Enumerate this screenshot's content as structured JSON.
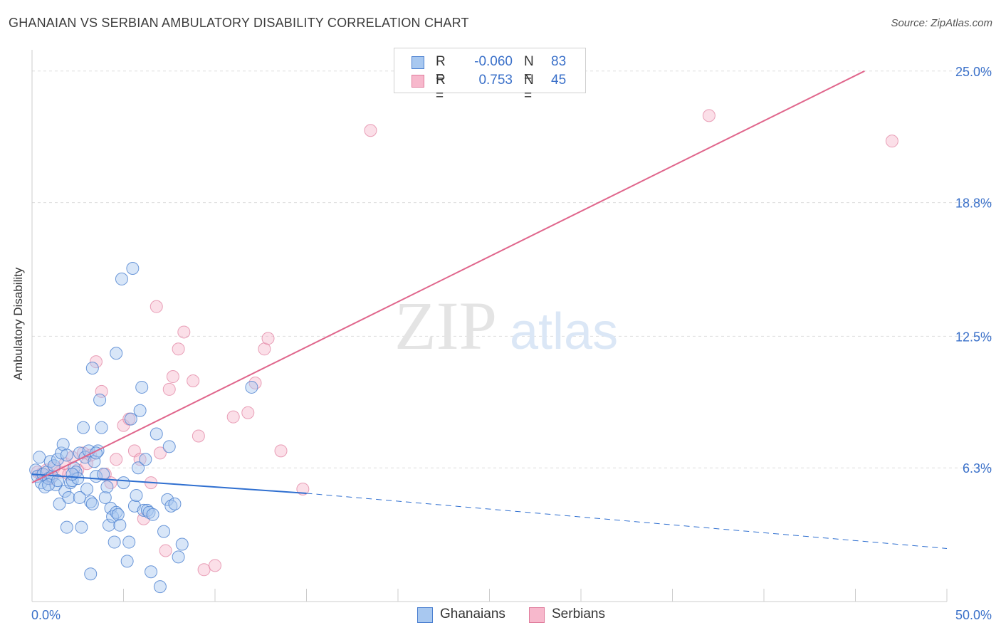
{
  "title": "GHANAIAN VS SERBIAN AMBULATORY DISABILITY CORRELATION CHART",
  "source": "Source: ZipAtlas.com",
  "legend_stats": [
    {
      "series": "Ghanaians",
      "r_label": "R =",
      "r_value": "-0.060",
      "n_label": "N =",
      "n_value": "83"
    },
    {
      "series": "Serbians",
      "r_label": "R =",
      "r_value": "0.753",
      "n_label": "N =",
      "n_value": "45"
    }
  ],
  "watermark": {
    "zip": "ZIP",
    "atlas": "atlas"
  },
  "colors": {
    "ghanaian_fill": "#a8c8f0",
    "ghanaian_stroke": "#4a7fd0",
    "ghanaian_line": "#2f6fd0",
    "serbian_fill": "#f7b8cc",
    "serbian_stroke": "#e07c9c",
    "serbian_line": "#e0668c",
    "axis_label": "#3a70c9",
    "grid": "#dddddd"
  },
  "chart_data": {
    "type": "scatter",
    "title": "GHANAIAN VS SERBIAN AMBULATORY DISABILITY CORRELATION CHART",
    "xlabel": "",
    "ylabel": "Ambulatory Disability",
    "xlim": [
      0,
      50
    ],
    "ylim": [
      0,
      26
    ],
    "x_tick_labels": [
      "0.0%",
      "50.0%"
    ],
    "y_ticks": [
      6.3,
      12.5,
      18.8,
      25.0
    ],
    "y_tick_labels": [
      "6.3%",
      "12.5%",
      "18.8%",
      "25.0%"
    ],
    "legend": [
      "Ghanaians",
      "Serbians"
    ],
    "series": [
      {
        "name": "Ghanaians",
        "r": -0.06,
        "n": 83,
        "trend": {
          "x1": 0,
          "y1": 6.0,
          "x2": 15,
          "y2": 5.1,
          "dash_to_x": 50,
          "dash_to_y": 2.5
        },
        "points": [
          [
            0.2,
            6.2
          ],
          [
            0.3,
            5.9
          ],
          [
            0.4,
            6.8
          ],
          [
            0.5,
            5.6
          ],
          [
            0.6,
            6.0
          ],
          [
            0.7,
            5.4
          ],
          [
            0.8,
            6.1
          ],
          [
            0.9,
            5.8
          ],
          [
            1.0,
            6.6
          ],
          [
            1.1,
            5.9
          ],
          [
            1.2,
            6.4
          ],
          [
            1.3,
            5.5
          ],
          [
            1.4,
            6.7
          ],
          [
            1.5,
            4.6
          ],
          [
            1.6,
            7.0
          ],
          [
            1.7,
            7.4
          ],
          [
            1.8,
            5.2
          ],
          [
            1.9,
            6.9
          ],
          [
            2.0,
            4.9
          ],
          [
            2.1,
            5.6
          ],
          [
            2.2,
            5.7
          ],
          [
            2.3,
            6.3
          ],
          [
            2.4,
            6.1
          ],
          [
            2.5,
            5.8
          ],
          [
            2.6,
            7.0
          ],
          [
            2.7,
            3.5
          ],
          [
            2.8,
            8.2
          ],
          [
            2.9,
            6.8
          ],
          [
            3.0,
            5.3
          ],
          [
            3.1,
            7.1
          ],
          [
            3.2,
            4.7
          ],
          [
            3.3,
            4.6
          ],
          [
            3.4,
            6.6
          ],
          [
            3.5,
            5.9
          ],
          [
            3.6,
            7.1
          ],
          [
            3.7,
            9.5
          ],
          [
            3.8,
            8.2
          ],
          [
            3.9,
            6.0
          ],
          [
            4.0,
            4.9
          ],
          [
            4.1,
            5.4
          ],
          [
            4.2,
            3.6
          ],
          [
            4.3,
            4.4
          ],
          [
            4.4,
            4.0
          ],
          [
            4.5,
            2.8
          ],
          [
            4.6,
            4.2
          ],
          [
            4.7,
            4.1
          ],
          [
            4.8,
            3.6
          ],
          [
            4.9,
            15.2
          ],
          [
            5.0,
            5.6
          ],
          [
            5.2,
            1.9
          ],
          [
            5.3,
            2.8
          ],
          [
            5.4,
            8.6
          ],
          [
            5.5,
            15.7
          ],
          [
            5.6,
            4.5
          ],
          [
            5.7,
            5.0
          ],
          [
            5.8,
            6.3
          ],
          [
            5.9,
            9.0
          ],
          [
            6.0,
            10.1
          ],
          [
            6.1,
            4.3
          ],
          [
            6.2,
            6.7
          ],
          [
            6.3,
            4.3
          ],
          [
            6.4,
            4.2
          ],
          [
            6.5,
            1.4
          ],
          [
            6.6,
            4.1
          ],
          [
            6.8,
            7.9
          ],
          [
            7.0,
            0.7
          ],
          [
            7.2,
            3.3
          ],
          [
            7.4,
            4.8
          ],
          [
            7.5,
            7.3
          ],
          [
            7.6,
            4.5
          ],
          [
            7.8,
            4.6
          ],
          [
            8.0,
            2.1
          ],
          [
            8.2,
            2.7
          ],
          [
            4.6,
            11.7
          ],
          [
            3.3,
            11.0
          ],
          [
            3.2,
            1.3
          ],
          [
            1.9,
            3.5
          ],
          [
            0.9,
            5.5
          ],
          [
            1.4,
            5.7
          ],
          [
            2.2,
            6.0
          ],
          [
            12.0,
            10.1
          ],
          [
            2.6,
            4.9
          ],
          [
            3.5,
            7.0
          ]
        ]
      },
      {
        "name": "Serbians",
        "r": 0.753,
        "n": 45,
        "trend": {
          "x1": 0,
          "y1": 5.6,
          "x2": 45.5,
          "y2": 25.0
        },
        "points": [
          [
            0.3,
            6.1
          ],
          [
            0.5,
            6.0
          ],
          [
            0.8,
            6.2
          ],
          [
            1.0,
            5.8
          ],
          [
            1.2,
            6.3
          ],
          [
            1.5,
            6.1
          ],
          [
            1.8,
            6.5
          ],
          [
            2.0,
            6.0
          ],
          [
            2.2,
            6.8
          ],
          [
            2.5,
            6.2
          ],
          [
            2.8,
            7.0
          ],
          [
            3.0,
            6.5
          ],
          [
            3.2,
            6.9
          ],
          [
            3.5,
            11.3
          ],
          [
            3.8,
            9.9
          ],
          [
            4.0,
            6.0
          ],
          [
            4.3,
            5.6
          ],
          [
            4.6,
            6.7
          ],
          [
            5.0,
            8.3
          ],
          [
            5.3,
            8.6
          ],
          [
            5.6,
            7.1
          ],
          [
            5.9,
            6.7
          ],
          [
            6.1,
            3.9
          ],
          [
            6.5,
            5.6
          ],
          [
            6.8,
            13.9
          ],
          [
            7.0,
            7.0
          ],
          [
            7.3,
            2.4
          ],
          [
            7.5,
            10.0
          ],
          [
            7.7,
            10.6
          ],
          [
            8.0,
            11.9
          ],
          [
            8.3,
            12.7
          ],
          [
            8.8,
            10.4
          ],
          [
            9.1,
            7.8
          ],
          [
            9.4,
            1.5
          ],
          [
            10.0,
            1.7
          ],
          [
            11.0,
            8.7
          ],
          [
            11.8,
            8.9
          ],
          [
            12.2,
            10.3
          ],
          [
            12.7,
            11.9
          ],
          [
            12.9,
            12.4
          ],
          [
            13.6,
            7.1
          ],
          [
            14.8,
            5.3
          ],
          [
            18.5,
            22.2
          ],
          [
            37.0,
            22.9
          ],
          [
            47.0,
            21.7
          ]
        ]
      }
    ]
  }
}
